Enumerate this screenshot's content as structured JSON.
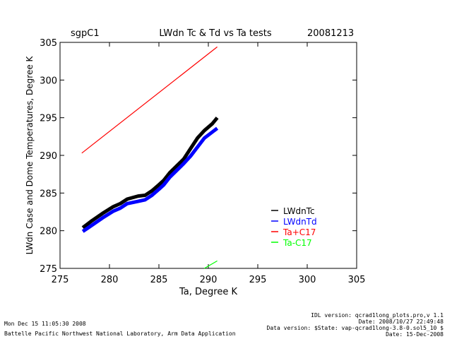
{
  "chart_data": {
    "type": "line",
    "title": "LWdn Tc & Td vs Ta tests",
    "site": "sgpC1",
    "date": "20081213",
    "xlabel": "Ta, Degree K",
    "ylabel": "LWdn Case and Dome Temperatures, Degree K",
    "xlim": [
      275,
      305
    ],
    "ylim": [
      275,
      305
    ],
    "xticks": [
      "275",
      "280",
      "285",
      "290",
      "295",
      "300",
      "305"
    ],
    "yticks": [
      "275",
      "280",
      "285",
      "290",
      "295",
      "300",
      "305"
    ],
    "legend_position": "bottom-right",
    "series": [
      {
        "name": "LWdnTc",
        "color": "#000000",
        "x": [
          277.3,
          278.2,
          279.3,
          280.4,
          281.1,
          281.8,
          282.9,
          283.6,
          284.3,
          285.0,
          285.5,
          286.1,
          286.8,
          287.5,
          288.2,
          288.9,
          289.6,
          290.4,
          290.9
        ],
        "y": [
          280.4,
          281.3,
          282.3,
          283.2,
          283.6,
          284.2,
          284.6,
          284.7,
          285.3,
          286.1,
          286.7,
          287.7,
          288.6,
          289.5,
          290.9,
          292.3,
          293.3,
          294.2,
          295.0
        ]
      },
      {
        "name": "LWdnTd",
        "color": "#0000ff",
        "x": [
          277.3,
          278.2,
          279.3,
          280.4,
          281.1,
          281.8,
          282.9,
          283.6,
          284.3,
          285.0,
          285.5,
          286.1,
          286.8,
          287.5,
          288.2,
          288.9,
          289.6,
          290.4,
          290.9
        ],
        "y": [
          279.9,
          280.7,
          281.7,
          282.6,
          283.0,
          283.6,
          283.9,
          284.1,
          284.7,
          285.5,
          286.1,
          287.1,
          288.0,
          288.9,
          289.9,
          291.1,
          292.3,
          293.1,
          293.6
        ]
      },
      {
        "name": "Ta+C17",
        "color": "#ff0000",
        "x": [
          277.2,
          290.9
        ],
        "y": [
          290.3,
          304.4
        ]
      },
      {
        "name": "Ta-C17",
        "color": "#00ff00",
        "x": [
          289.6,
          290.9
        ],
        "y": [
          275.0,
          276.0
        ]
      }
    ]
  },
  "footer": {
    "run_time": "Mon Dec 15 11:05:30 2008",
    "institution": "Battelle Pacific Northwest National Laboratory, Arm Data Application",
    "idl_version": "IDL version: qcrad1long_plots.pro,v 1.1",
    "idl_date": "Date: 2008/10/27 22:49:48",
    "data_version": "Data version: $State: vap-qcrad1long-3.8-0.sol5_10 $",
    "data_date": "Date: 15-Dec-2008"
  }
}
